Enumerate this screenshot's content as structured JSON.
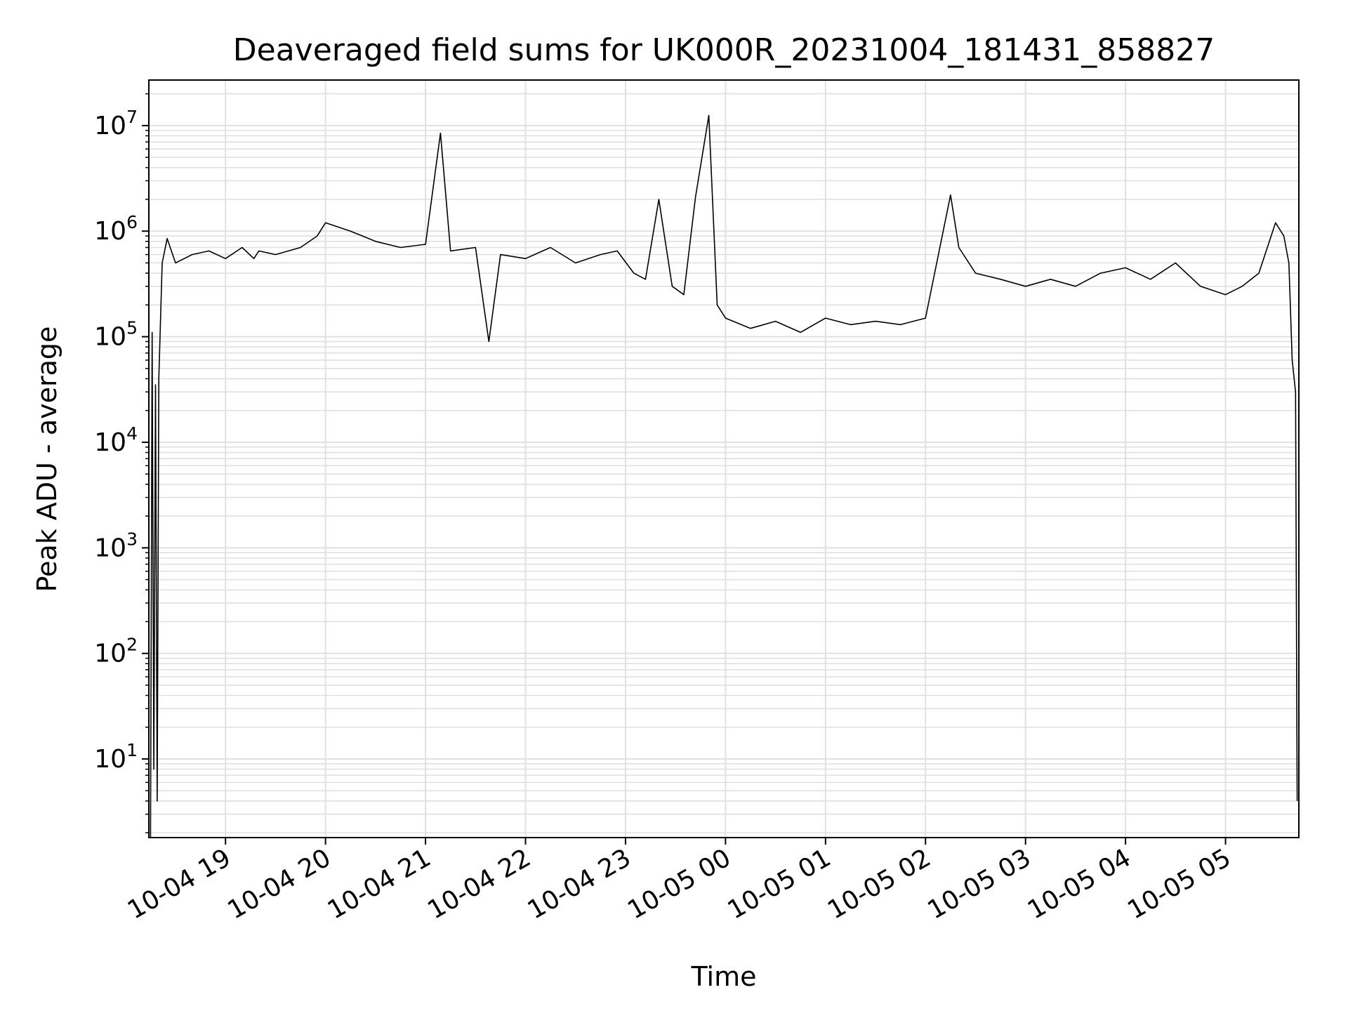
{
  "chart_data": {
    "type": "line",
    "title": "Deaveraged field sums for UK000R_20231004_181431_858827",
    "xlabel": "Time",
    "ylabel": "Peak ADU - average",
    "yscale": "log",
    "ylim": [
      1.8,
      27000000
    ],
    "xlim": [
      "2023-10-04 18:14",
      "2023-10-05 05:44"
    ],
    "grid": true,
    "line_color": "#000000",
    "grid_color": "#e0e0e0",
    "x_ticks": [
      {
        "value": "2023-10-04 19:00",
        "label": "10-04 19"
      },
      {
        "value": "2023-10-04 20:00",
        "label": "10-04 20"
      },
      {
        "value": "2023-10-04 21:00",
        "label": "10-04 21"
      },
      {
        "value": "2023-10-04 22:00",
        "label": "10-04 22"
      },
      {
        "value": "2023-10-04 23:00",
        "label": "10-04 23"
      },
      {
        "value": "2023-10-05 00:00",
        "label": "10-05 00"
      },
      {
        "value": "2023-10-05 01:00",
        "label": "10-05 01"
      },
      {
        "value": "2023-10-05 02:00",
        "label": "10-05 02"
      },
      {
        "value": "2023-10-05 03:00",
        "label": "10-05 03"
      },
      {
        "value": "2023-10-05 04:00",
        "label": "10-05 04"
      },
      {
        "value": "2023-10-05 05:00",
        "label": "10-05 05"
      }
    ],
    "y_ticks": [
      {
        "value": 10,
        "base": "10",
        "exp": "1"
      },
      {
        "value": 100,
        "base": "10",
        "exp": "2"
      },
      {
        "value": 1000,
        "base": "10",
        "exp": "3"
      },
      {
        "value": 10000,
        "base": "10",
        "exp": "4"
      },
      {
        "value": 100000,
        "base": "10",
        "exp": "5"
      },
      {
        "value": 1000000,
        "base": "10",
        "exp": "6"
      },
      {
        "value": 10000000,
        "base": "10",
        "exp": "7"
      }
    ],
    "series": [
      {
        "x": [
          "2023-10-04 18:15",
          "2023-10-04 18:16",
          "2023-10-04 18:17",
          "2023-10-04 18:18",
          "2023-10-04 18:19",
          "2023-10-04 18:20",
          "2023-10-04 18:22",
          "2023-10-04 18:25",
          "2023-10-04 18:30",
          "2023-10-04 18:40",
          "2023-10-04 18:50",
          "2023-10-04 19:00",
          "2023-10-04 19:10",
          "2023-10-04 19:17",
          "2023-10-04 19:20",
          "2023-10-04 19:30",
          "2023-10-04 19:45",
          "2023-10-04 19:55",
          "2023-10-04 20:00",
          "2023-10-04 20:15",
          "2023-10-04 20:30",
          "2023-10-04 20:45",
          "2023-10-04 21:00",
          "2023-10-04 21:09",
          "2023-10-04 21:15",
          "2023-10-04 21:30",
          "2023-10-04 21:38",
          "2023-10-04 21:45",
          "2023-10-04 22:00",
          "2023-10-04 22:15",
          "2023-10-04 22:30",
          "2023-10-04 22:45",
          "2023-10-04 22:55",
          "2023-10-04 23:05",
          "2023-10-04 23:12",
          "2023-10-04 23:20",
          "2023-10-04 23:28",
          "2023-10-04 23:35",
          "2023-10-04 23:42",
          "2023-10-04 23:50",
          "2023-10-04 23:55",
          "2023-10-05 00:00",
          "2023-10-05 00:15",
          "2023-10-05 00:30",
          "2023-10-05 00:45",
          "2023-10-05 01:00",
          "2023-10-05 01:15",
          "2023-10-05 01:30",
          "2023-10-05 01:45",
          "2023-10-05 02:00",
          "2023-10-05 02:15",
          "2023-10-05 02:20",
          "2023-10-05 02:30",
          "2023-10-05 02:45",
          "2023-10-05 03:00",
          "2023-10-05 03:15",
          "2023-10-05 03:30",
          "2023-10-05 03:45",
          "2023-10-05 04:00",
          "2023-10-05 04:15",
          "2023-10-05 04:30",
          "2023-10-05 04:45",
          "2023-10-05 05:00",
          "2023-10-05 05:10",
          "2023-10-05 05:20",
          "2023-10-05 05:30",
          "2023-10-05 05:35",
          "2023-10-05 05:38",
          "2023-10-05 05:40",
          "2023-10-05 05:42",
          "2023-10-05 05:43"
        ],
        "values": [
          1.8,
          110000,
          8,
          35000,
          4,
          40000,
          500000,
          850000,
          500000,
          600000,
          650000,
          550000,
          700000,
          550000,
          650000,
          600000,
          700000,
          900000,
          1200000,
          1000000,
          800000,
          700000,
          750000,
          8500000,
          650000,
          700000,
          90000,
          600000,
          550000,
          700000,
          500000,
          600000,
          650000,
          400000,
          350000,
          2000000,
          300000,
          250000,
          2100000,
          12500000,
          200000,
          150000,
          120000,
          140000,
          110000,
          150000,
          130000,
          140000,
          130000,
          150000,
          2200000,
          700000,
          400000,
          350000,
          300000,
          350000,
          300000,
          400000,
          450000,
          350000,
          500000,
          300000,
          250000,
          300000,
          400000,
          1200000,
          900000,
          500000,
          60000,
          30000,
          4
        ]
      }
    ]
  }
}
